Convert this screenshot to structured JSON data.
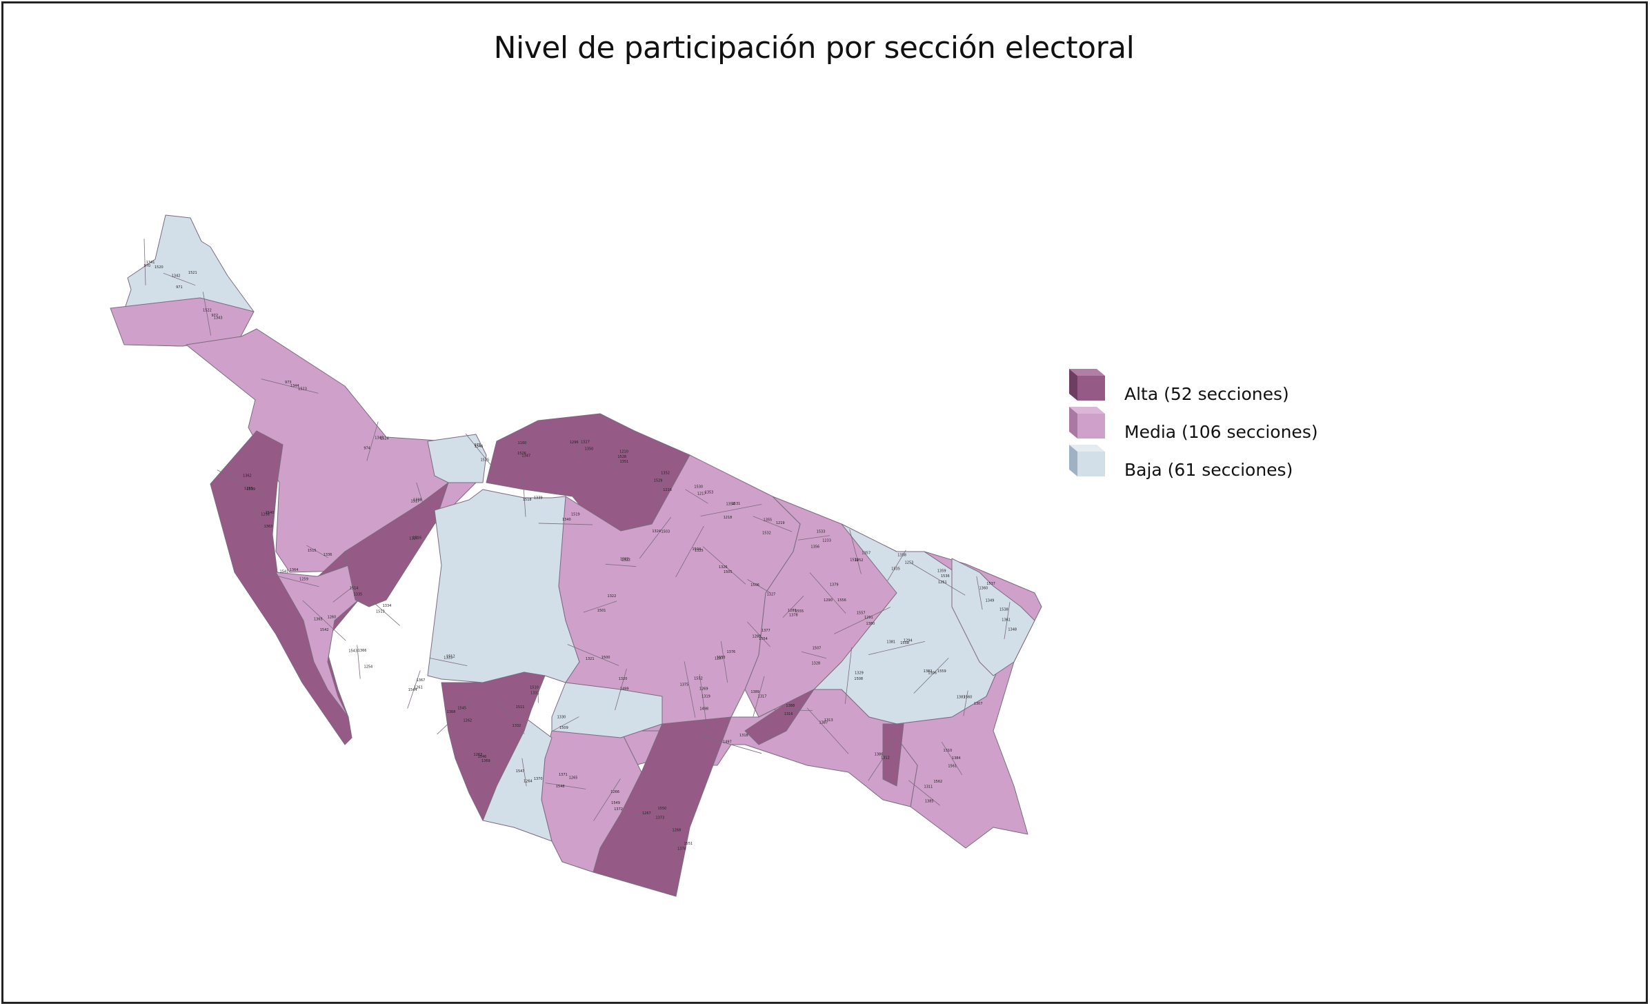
{
  "title": "Nivel de participación por sección electoral",
  "colors": {
    "alta": "#965a86",
    "media": "#cfa0c9",
    "baja": "#d3dfe8",
    "boundary": "#7a6a7e",
    "border": "#222222"
  },
  "legend": [
    {
      "key": "alta",
      "label": "Alta (52 secciones)",
      "color": "#965a86"
    },
    {
      "key": "media",
      "label": "Media (106 secciones)",
      "color": "#cfa0c9"
    },
    {
      "key": "baja",
      "label": "Baja (61 secciones)",
      "color": "#d3dfe8"
    }
  ],
  "section_labels": [
    "970",
    "971",
    "972",
    "973",
    "974",
    "975",
    "1160",
    "1296",
    "1210",
    "1216",
    "1217",
    "1218",
    "1219",
    "1233",
    "1252",
    "1253",
    "1251",
    "1349",
    "1348",
    "1255",
    "1258",
    "1259",
    "1260",
    "1254",
    "1261",
    "1262",
    "1263",
    "1264",
    "1265",
    "1266",
    "1267",
    "1268",
    "1269",
    "1287",
    "1288",
    "1289",
    "1290",
    "1291",
    "1294",
    "1306",
    "1307",
    "1310",
    "1311",
    "1312",
    "1313",
    "1316",
    "1317",
    "1318",
    "1319",
    "1320",
    "1321",
    "1322",
    "1323",
    "1324",
    "1325",
    "1326",
    "1327",
    "1328",
    "1329",
    "1330",
    "1331",
    "1332",
    "1333",
    "1334",
    "1335",
    "1336",
    "1337",
    "1338",
    "1339",
    "1340",
    "1341",
    "1342",
    "1343",
    "1344",
    "1345",
    "1346",
    "1347",
    "1350",
    "1351",
    "1352",
    "1353",
    "1354",
    "1355",
    "1356",
    "1357",
    "1358",
    "1359",
    "1360",
    "1361",
    "1362",
    "1363",
    "1364",
    "1365",
    "1366",
    "1367",
    "1368",
    "1369",
    "1370",
    "1371",
    "1372",
    "1373",
    "1374",
    "1375",
    "1376",
    "1377",
    "1378",
    "1379",
    "1380",
    "1381",
    "1382",
    "1383",
    "1384",
    "1385",
    "1386",
    "1387",
    "1388",
    "1389",
    "1497",
    "1498",
    "1499",
    "1500",
    "1501",
    "1502",
    "1503",
    "1504",
    "1505",
    "1506",
    "1507",
    "1508",
    "1509",
    "1510",
    "1511",
    "1512",
    "1513",
    "1514",
    "1515",
    "1516",
    "1517",
    "1518",
    "1519",
    "1520",
    "1521",
    "1522",
    "1523",
    "1524",
    "1525",
    "1526",
    "1527",
    "1528",
    "1529",
    "1530",
    "1531",
    "1532",
    "1533",
    "1534",
    "1535",
    "1536",
    "1537",
    "1538",
    "1539",
    "1540",
    "1541",
    "1542",
    "1543",
    "1544",
    "1545",
    "1546",
    "1547",
    "1548",
    "1549",
    "1550",
    "1551",
    "1552",
    "1553",
    "1554",
    "1555",
    "1556",
    "1557",
    "1558",
    "1559",
    "1560",
    "1561",
    "1562"
  ]
}
